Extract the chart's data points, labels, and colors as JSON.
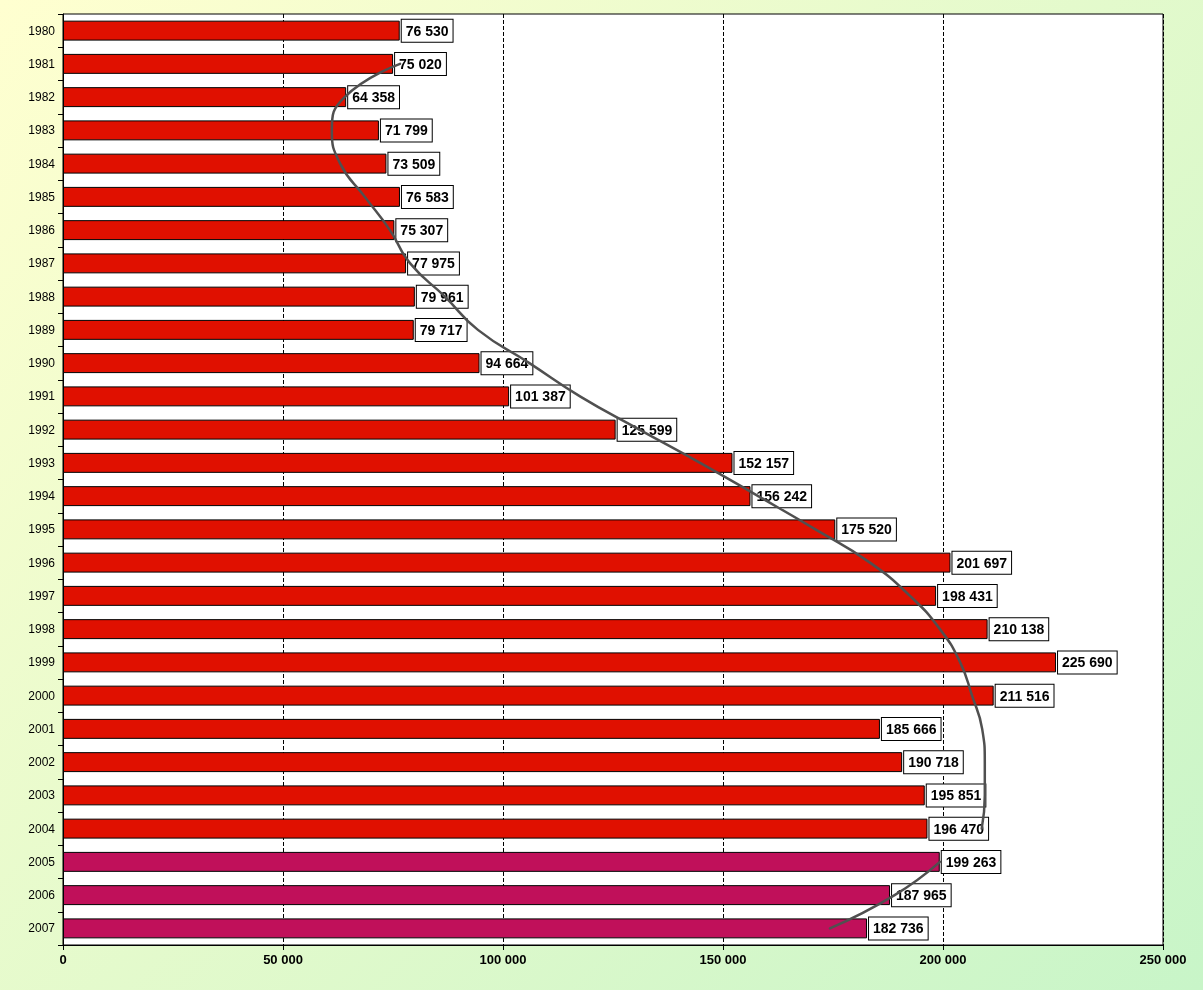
{
  "chart_data": {
    "type": "bar",
    "orientation": "horizontal",
    "categories": [
      "1980",
      "1981",
      "1982",
      "1983",
      "1984",
      "1985",
      "1986",
      "1987",
      "1988",
      "1989",
      "1990",
      "1991",
      "1992",
      "1993",
      "1994",
      "1995",
      "1996",
      "1997",
      "1998",
      "1999",
      "2000",
      "2001",
      "2002",
      "2003",
      "2004",
      "2005",
      "2006",
      "2007"
    ],
    "series": [
      {
        "values": [
          76530,
          75020,
          64358,
          71799,
          73509,
          76583,
          75307,
          77975,
          79961,
          79717,
          94664,
          101387,
          125599,
          152157,
          156242,
          175520,
          201697,
          198431,
          210138,
          225690,
          211516,
          185666,
          190718,
          195851,
          196470,
          199263,
          187965,
          182736
        ],
        "colors": [
          "#e01000",
          "#e01000",
          "#e01000",
          "#e01000",
          "#e01000",
          "#e01000",
          "#e01000",
          "#e01000",
          "#e01000",
          "#e01000",
          "#e01000",
          "#e01000",
          "#e01000",
          "#e01000",
          "#e01000",
          "#e01000",
          "#e01000",
          "#e01000",
          "#e01000",
          "#e01000",
          "#e01000",
          "#e01000",
          "#e01000",
          "#e01000",
          "#e01000",
          "#c0105a",
          "#c0105a",
          "#c0105a"
        ],
        "value_labels": [
          "76 530",
          "75 020",
          "64 358",
          "71 799",
          "73 509",
          "76 583",
          "75 307",
          "77 975",
          "79 961",
          "79 717",
          "94 664",
          "101 387",
          "125 599",
          "152 157",
          "156 242",
          "175 520",
          "201 697",
          "198 431",
          "210 138",
          "225 690",
          "211 516",
          "185 666",
          "190 718",
          "195 851",
          "196 470",
          "199 263",
          "187 965",
          "182 736"
        ]
      },
      {
        "type": "line",
        "color": "#505050",
        "values": [
          null,
          76600,
          64000,
          61100,
          63000,
          68600,
          74300,
          78900,
          86800,
          94300,
          106000,
          117500,
          131000,
          144800,
          158000,
          171000,
          183400,
          192500,
          199300,
          203900,
          206600,
          208900,
          209500,
          209500,
          208800,
          null,
          null,
          null
        ]
      },
      {
        "type": "line",
        "color": "#505050",
        "values": [
          null,
          null,
          null,
          null,
          null,
          null,
          null,
          null,
          null,
          null,
          null,
          null,
          null,
          null,
          null,
          null,
          null,
          null,
          null,
          null,
          null,
          null,
          null,
          null,
          null,
          199300,
          189000,
          174300
        ]
      }
    ],
    "xlim": [
      0,
      250000
    ],
    "xticks": [
      {
        "value": 0,
        "label": "0"
      },
      {
        "value": 50000,
        "label": "50 000"
      },
      {
        "value": 100000,
        "label": "100 000"
      },
      {
        "value": 150000,
        "label": "150 000"
      },
      {
        "value": 200000,
        "label": "200 000"
      },
      {
        "value": 250000,
        "label": "250 000"
      }
    ],
    "grid": "x",
    "marker": "none"
  }
}
